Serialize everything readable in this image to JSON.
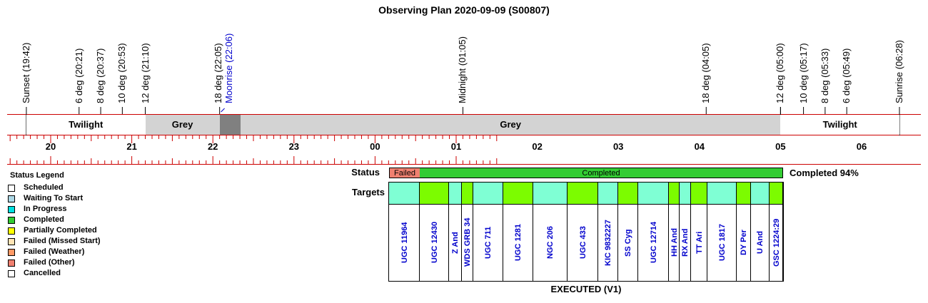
{
  "title": "Observing Plan 2020-09-09 (S00807)",
  "time_events": [
    {
      "label": "Sunset (19:42)",
      "type": "sun"
    },
    {
      "label": "6 deg (20:21)",
      "type": "twilight"
    },
    {
      "label": "8 deg (20:37)",
      "type": "twilight"
    },
    {
      "label": "10 deg (20:53)",
      "type": "twilight"
    },
    {
      "label": "12 deg (21:10)",
      "type": "twilight"
    },
    {
      "label": "18 deg (22:05)",
      "type": "twilight"
    },
    {
      "label": "Moonrise (22:06)",
      "type": "moon"
    },
    {
      "label": "Midnight (01:05)",
      "type": "midnight"
    },
    {
      "label": "18 deg (04:05)",
      "type": "twilight"
    },
    {
      "label": "12 deg (05:00)",
      "type": "twilight"
    },
    {
      "label": "10 deg (05:17)",
      "type": "twilight"
    },
    {
      "label": "8 deg (05:33)",
      "type": "twilight"
    },
    {
      "label": "6 deg (05:49)",
      "type": "twilight"
    },
    {
      "label": "Sunrise (06:28)",
      "type": "sun"
    }
  ],
  "bands": [
    {
      "label": "Twilight",
      "color": "#ffffff"
    },
    {
      "label": "Grey",
      "color": "#d3d3d3"
    },
    {
      "label": "",
      "color": "#808080"
    },
    {
      "label": "Grey",
      "color": "#d3d3d3"
    },
    {
      "label": "Twilight",
      "color": "#ffffff"
    }
  ],
  "hours": [
    "20",
    "21",
    "22",
    "23",
    "00",
    "01",
    "02",
    "03",
    "04",
    "05",
    "06"
  ],
  "legend": {
    "title": "Status Legend",
    "items": [
      {
        "label": "Scheduled",
        "color": "#ffffff"
      },
      {
        "label": "Waiting To Start",
        "color": "#add8e6"
      },
      {
        "label": "In Progress",
        "color": "#00e0e0"
      },
      {
        "label": "Completed",
        "color": "#33cc33"
      },
      {
        "label": "Partially Completed",
        "color": "#ffff00"
      },
      {
        "label": "Failed (Missed Start)",
        "color": "#ffe4b5"
      },
      {
        "label": "Failed (Weather)",
        "color": "#ff9966"
      },
      {
        "label": "Failed (Other)",
        "color": "#f08070"
      },
      {
        "label": "Cancelled",
        "color": "#ffffff"
      }
    ]
  },
  "status_row": {
    "label": "Status",
    "segments": [
      {
        "label": "Failed",
        "color": "#f08070"
      },
      {
        "label": "Completed",
        "color": "#33cc33"
      }
    ],
    "summary": "Completed 94%"
  },
  "targets_row": {
    "label": "Targets",
    "cyan": "#7fffd4",
    "green": "#7cfc00",
    "targets": [
      {
        "name": "UGC 11964",
        "color": "cyan"
      },
      {
        "name": "UGC 12430",
        "color": "green"
      },
      {
        "name": "Z And",
        "color": "cyan"
      },
      {
        "name": "WDS GRB 34",
        "color": "green"
      },
      {
        "name": "UGC 711",
        "color": "cyan"
      },
      {
        "name": "UGC 1281",
        "color": "green"
      },
      {
        "name": "NGC 206",
        "color": "cyan"
      },
      {
        "name": "UGC 433",
        "color": "green"
      },
      {
        "name": "KIC 9832227",
        "color": "cyan"
      },
      {
        "name": "SS Cyg",
        "color": "green"
      },
      {
        "name": "UGC 12714",
        "color": "cyan"
      },
      {
        "name": "HH And",
        "color": "green"
      },
      {
        "name": "RX And",
        "color": "cyan"
      },
      {
        "name": "TT Ari",
        "color": "green"
      },
      {
        "name": "UGC 1817",
        "color": "cyan"
      },
      {
        "name": "DY Per",
        "color": "green"
      },
      {
        "name": "U And",
        "color": "cyan"
      },
      {
        "name": "GSC 1224:29",
        "color": "green"
      }
    ]
  },
  "footer": "EXECUTED (V1)"
}
